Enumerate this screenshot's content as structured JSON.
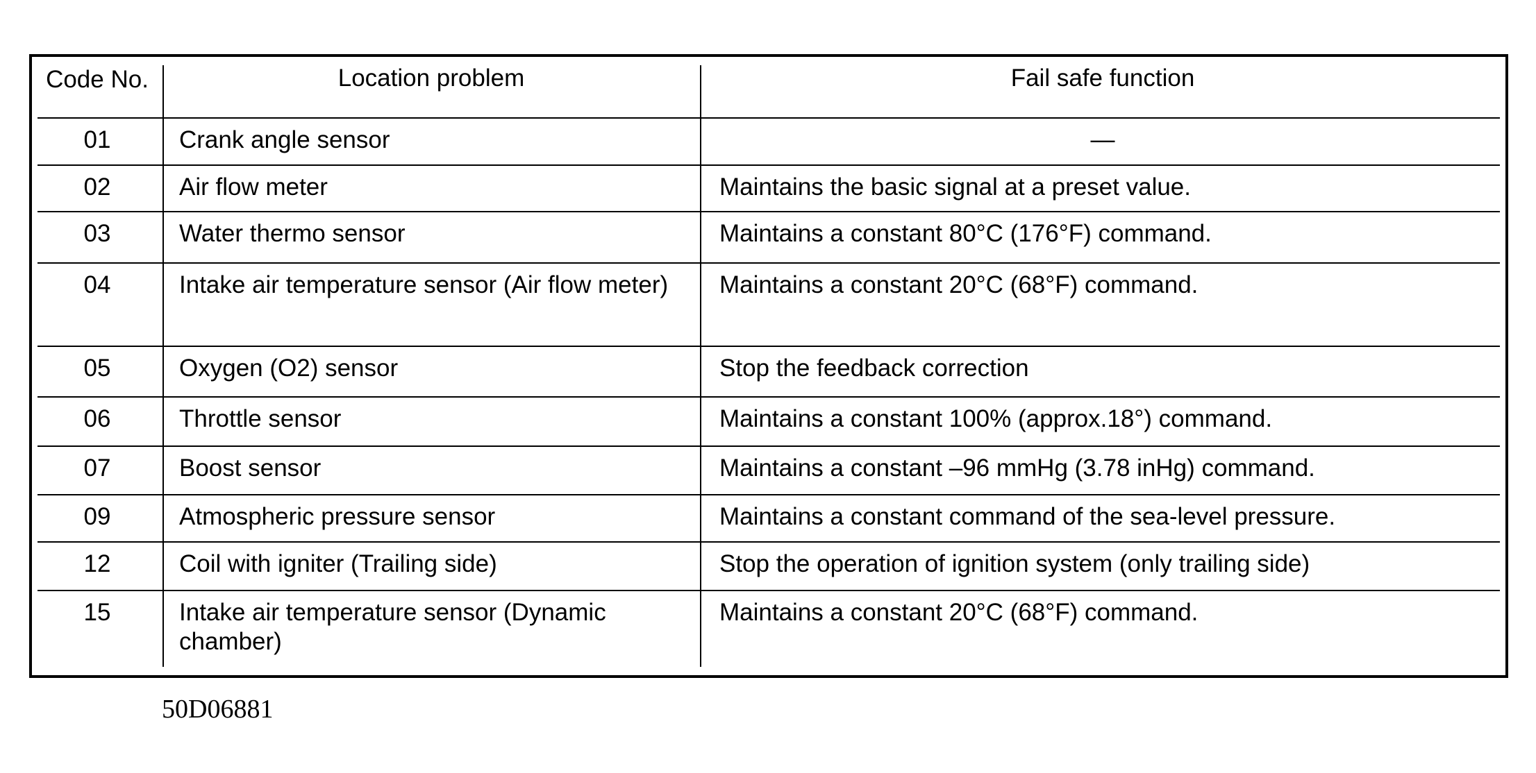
{
  "table": {
    "headers": [
      "Code No.",
      "Location problem",
      "Fail safe function"
    ],
    "rows": [
      {
        "code": "01",
        "location": "Crank angle sensor",
        "fail_safe": "—"
      },
      {
        "code": "02",
        "location": "Air flow meter",
        "fail_safe": "Maintains the basic signal at a preset value."
      },
      {
        "code": "03",
        "location": "Water thermo sensor",
        "fail_safe": "Maintains a constant 80°C (176°F) command."
      },
      {
        "code": "04",
        "location": "Intake air temperature sensor (Air flow meter)",
        "fail_safe": "Maintains a constant 20°C (68°F) command."
      },
      {
        "code": "05",
        "location": "Oxygen (O2) sensor",
        "fail_safe": "Stop the feedback correction"
      },
      {
        "code": "06",
        "location": "Throttle sensor",
        "fail_safe": "Maintains a constant 100% (approx.18°) command."
      },
      {
        "code": "07",
        "location": "Boost sensor",
        "fail_safe": "Maintains a constant –96 mmHg (3.78 inHg) command."
      },
      {
        "code": "09",
        "location": "Atmospheric pressure sensor",
        "fail_safe": "Maintains a constant command of the sea-level pressure."
      },
      {
        "code": "12",
        "location": "Coil with igniter (Trailing side)",
        "fail_safe": "Stop the operation of ignition system (only trailing side)"
      },
      {
        "code": "15",
        "location": "Intake air temperature sensor (Dynamic chamber)",
        "fail_safe": "Maintains a constant 20°C (68°F) command."
      }
    ]
  },
  "caption": "50D06881"
}
